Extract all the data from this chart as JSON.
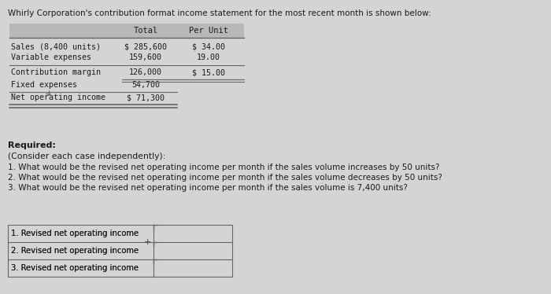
{
  "title": "Whirly Corporation's contribution format income statement for the most recent month is shown below:",
  "bg_color": "#d4d4d4",
  "table_header": [
    "Total",
    "Per Unit"
  ],
  "table_rows": [
    [
      "Sales (8,400 units)",
      "$ 285,600",
      "$ 34.00"
    ],
    [
      "Variable expenses",
      "159,600",
      "19.00"
    ],
    [
      "Contribution margin",
      "126,000",
      "$ 15.00"
    ],
    [
      "Fixed expenses",
      "54,700",
      ""
    ],
    [
      "Net operating income",
      "$ 71,300",
      ""
    ]
  ],
  "required_label": "Required:",
  "consider_label": "(Consider each case independently):",
  "questions": [
    "1. What would be the revised net operating income per month if the sales volume increases by 50 units?",
    "2. What would be the revised net operating income per month if the sales volume decreases by 50 units?",
    "3. What would be the revised net operating income per month if the sales volume is 7,400 units?"
  ],
  "answer_labels": [
    "1. Revised net operating income",
    "2. Revised net operating income",
    "3. Revised net operating income"
  ],
  "font_color": "#1a1a1a",
  "table_header_bg": "#b8b8b8",
  "line_color": "#666666",
  "answer_box_bg": "#d4d4d4"
}
